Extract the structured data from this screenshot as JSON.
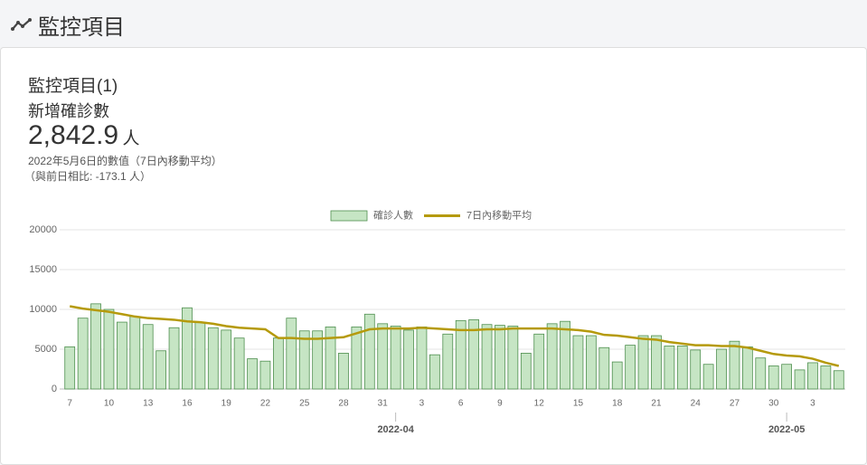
{
  "header": {
    "title": "監控項目"
  },
  "summary": {
    "title": "監控項目(1)",
    "metric": "新增確診數",
    "value": "2,842.9",
    "unit": "人",
    "note": "2022年5月6日的數值（7日內移動平均）",
    "change": "（與前日相比: -173.1 人）"
  },
  "chart_data": {
    "type": "bar",
    "categories": [
      "7",
      null,
      null,
      "10",
      null,
      null,
      "13",
      null,
      null,
      "16",
      null,
      null,
      "19",
      null,
      null,
      "22",
      null,
      null,
      "25",
      null,
      null,
      "28",
      null,
      null,
      "31",
      null,
      null,
      "3",
      null,
      null,
      "6",
      null,
      null,
      "9",
      null,
      null,
      "12",
      null,
      null,
      "15",
      null,
      null,
      "18",
      null,
      null,
      "21",
      null,
      null,
      "24",
      null,
      null,
      "27",
      null,
      null,
      "30",
      null,
      null,
      "3",
      null,
      null
    ],
    "month_ticks": [
      {
        "label": "2022-04",
        "at": 25
      },
      {
        "label": "2022-05",
        "at": 55
      }
    ],
    "series": [
      {
        "name": "確診人數",
        "type": "bar",
        "color": "#c6e5c4",
        "values": [
          5300,
          8900,
          10700,
          10000,
          8400,
          9100,
          8100,
          4800,
          7700,
          10200,
          8400,
          7700,
          7400,
          6400,
          3800,
          3500,
          6400,
          8900,
          7300,
          7300,
          7800,
          4500,
          7800,
          9400,
          8200,
          7900,
          7400,
          7800,
          4300,
          6900,
          8600,
          8700,
          8100,
          8000,
          7900,
          4500,
          6900,
          8200,
          8500,
          6700,
          6700,
          5200,
          3400,
          5500,
          6700,
          6700,
          5400,
          5400,
          4900,
          3100,
          5000,
          6000,
          5300,
          3900,
          2900,
          3100,
          2400,
          3300,
          2900,
          2300
        ]
      },
      {
        "name": "7日內移動平均",
        "type": "line",
        "color": "#b59a0c",
        "values": [
          10400,
          10100,
          9900,
          9700,
          9400,
          9100,
          8900,
          8800,
          8700,
          8500,
          8400,
          8200,
          7900,
          7700,
          7600,
          7500,
          6400,
          6400,
          6300,
          6300,
          6400,
          6500,
          7000,
          7500,
          7600,
          7600,
          7600,
          7700,
          7600,
          7500,
          7400,
          7400,
          7500,
          7500,
          7600,
          7600,
          7600,
          7600,
          7500,
          7400,
          7200,
          6800,
          6700,
          6500,
          6300,
          6200,
          5900,
          5700,
          5500,
          5500,
          5400,
          5400,
          5200,
          4800,
          4400,
          4200,
          4100,
          3800,
          3300,
          2900
        ]
      }
    ],
    "ylim": [
      0,
      20000
    ],
    "yticks": [
      0,
      5000,
      10000,
      15000,
      20000
    ],
    "grid": true,
    "legend": "top"
  }
}
